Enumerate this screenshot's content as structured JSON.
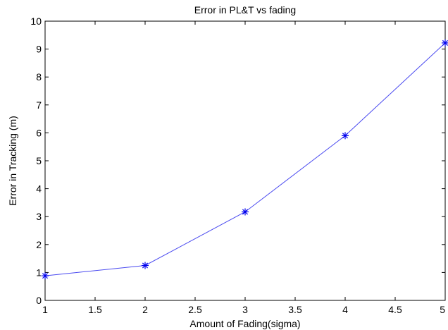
{
  "chart_data": {
    "type": "line",
    "title": "Error in PL&T vs fading",
    "xlabel": "Amount of Fading(sigma)",
    "ylabel": "Error in Tracking (m)",
    "xlim": [
      1,
      5
    ],
    "ylim": [
      0,
      10
    ],
    "xticks": [
      "1",
      "1.5",
      "2",
      "2.5",
      "3",
      "3.5",
      "4",
      "4.5",
      "5"
    ],
    "yticks": [
      "0",
      "1",
      "2",
      "3",
      "4",
      "5",
      "6",
      "7",
      "8",
      "9",
      "10"
    ],
    "grid": false,
    "marker": "*",
    "line_color": "#4a4af0",
    "marker_color": "#0000ee",
    "series": [
      {
        "x": [
          1,
          2,
          3,
          4,
          5
        ],
        "values": [
          0.88,
          1.25,
          3.17,
          5.9,
          9.22
        ]
      }
    ]
  }
}
